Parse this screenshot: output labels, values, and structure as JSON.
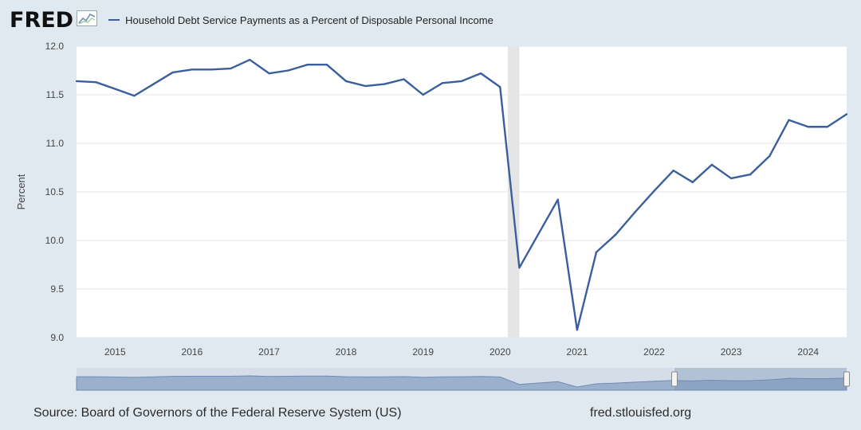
{
  "header": {
    "logo_text": "FRED",
    "logo_icon": "line-chart-icon",
    "legend_label": "Household Debt Service Payments as a Percent of Disposable Personal Income"
  },
  "footer": {
    "source": "Source: Board of Governors of the Federal Reserve System (US)",
    "url": "fred.stlouisfed.org"
  },
  "colors": {
    "series": "#3a5f9c",
    "plot_bg": "#ffffff",
    "page_bg": "#e1e9f0",
    "recession": "#e5e5e5"
  },
  "chart_data": {
    "type": "line",
    "title": "",
    "ylabel": "Percent",
    "xlabel": "",
    "ylim": [
      9.0,
      12.0
    ],
    "xlim": [
      2014.5,
      2024.5
    ],
    "y_ticks": [
      "9.0",
      "9.5",
      "10.0",
      "10.5",
      "11.0",
      "11.5",
      "12.0"
    ],
    "x_ticks": [
      "2015",
      "2016",
      "2017",
      "2018",
      "2019",
      "2020",
      "2021",
      "2022",
      "2023",
      "2024"
    ],
    "grid": true,
    "recession_band": [
      2020.1,
      2020.25
    ],
    "series": [
      {
        "name": "Household Debt Service Payments as a Percent of Disposable Personal Income",
        "x": [
          2014.5,
          2014.75,
          2015.0,
          2015.25,
          2015.5,
          2015.75,
          2016.0,
          2016.25,
          2016.5,
          2016.75,
          2017.0,
          2017.25,
          2017.5,
          2017.75,
          2018.0,
          2018.25,
          2018.5,
          2018.75,
          2019.0,
          2019.25,
          2019.5,
          2019.75,
          2020.0,
          2020.25,
          2020.5,
          2020.75,
          2021.0,
          2021.25,
          2021.5,
          2021.75,
          2022.0,
          2022.25,
          2022.5,
          2022.75,
          2023.0,
          2023.25,
          2023.5,
          2023.75,
          2024.0,
          2024.25,
          2024.5
        ],
        "values": [
          11.64,
          11.63,
          11.56,
          11.49,
          11.61,
          11.73,
          11.76,
          11.76,
          11.77,
          11.86,
          11.72,
          11.75,
          11.81,
          11.81,
          11.64,
          11.59,
          11.61,
          11.66,
          11.5,
          11.62,
          11.64,
          11.72,
          11.58,
          9.72,
          10.07,
          10.42,
          9.08,
          9.88,
          10.06,
          10.29,
          10.51,
          10.72,
          10.6,
          10.78,
          10.64,
          10.68,
          10.87,
          11.24,
          11.17,
          11.17,
          11.3
        ]
      }
    ]
  }
}
